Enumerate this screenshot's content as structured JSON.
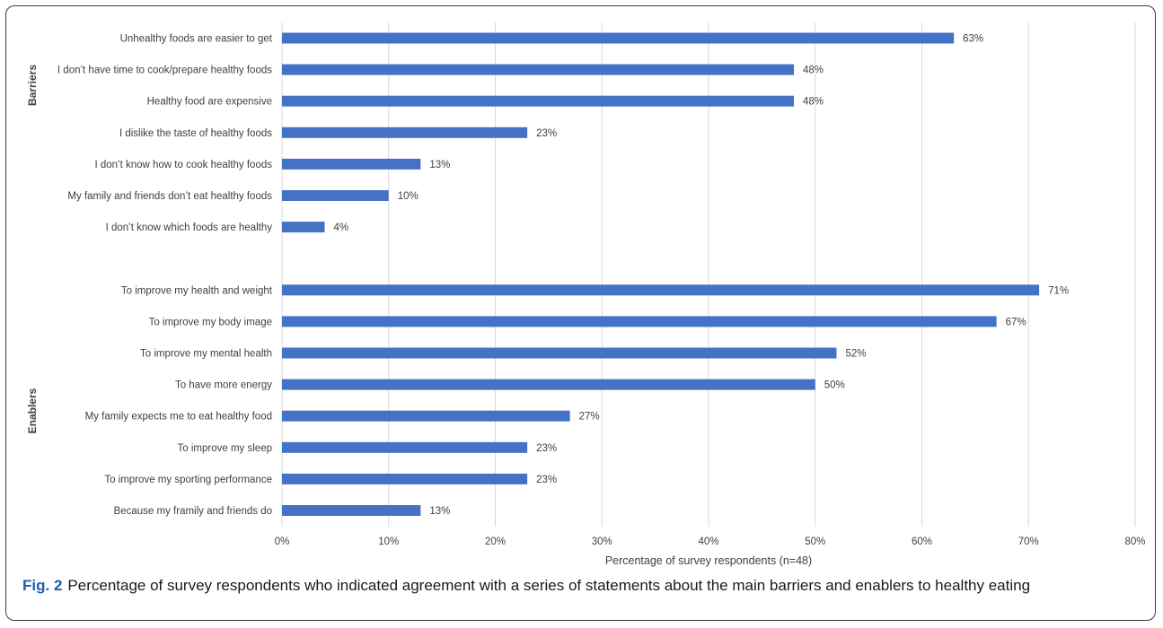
{
  "caption": {
    "label": "Fig. 2",
    "text": "Percentage of survey respondents who indicated agreement with a series of statements about the main barriers and enablers to healthy eating"
  },
  "colors": {
    "bar": "#4472c4",
    "grid": "#d9d9d9",
    "text": "#404040"
  },
  "chart_data": {
    "type": "bar",
    "orientation": "horizontal",
    "xlabel": "Percentage of survey respondents (n=48)",
    "xlim": [
      0,
      80
    ],
    "xticks": [
      "0%",
      "10%",
      "20%",
      "30%",
      "40%",
      "50%",
      "60%",
      "70%",
      "80%"
    ],
    "grid": "vertical",
    "groups": [
      {
        "name": "Barriers",
        "categories": [
          "Unhealthy foods are easier to get",
          "I don’t have time to cook/prepare healthy foods",
          "Healthy food are expensive",
          "I dislike the taste of healthy foods",
          "I don’t know how to cook healthy foods",
          "My family and friends don’t eat healthy foods",
          "I don’t know which foods are healthy"
        ],
        "values": [
          63,
          48,
          48,
          23,
          13,
          10,
          4
        ],
        "labels": [
          "63%",
          "48%",
          "48%",
          "23%",
          "13%",
          "10%",
          "4%"
        ]
      },
      {
        "name": "Enablers",
        "categories": [
          "To improve my health and weight",
          "To improve my  body image",
          "To improve my mental health",
          "To have more energy",
          "My family expects me to eat healthy food",
          "To improve my sleep",
          "To improve my sporting performance",
          "Because my framily and friends do"
        ],
        "values": [
          71,
          67,
          52,
          50,
          27,
          23,
          23,
          13
        ],
        "labels": [
          "71%",
          "67%",
          "52%",
          "50%",
          "27%",
          "23%",
          "23%",
          "13%"
        ]
      }
    ]
  }
}
